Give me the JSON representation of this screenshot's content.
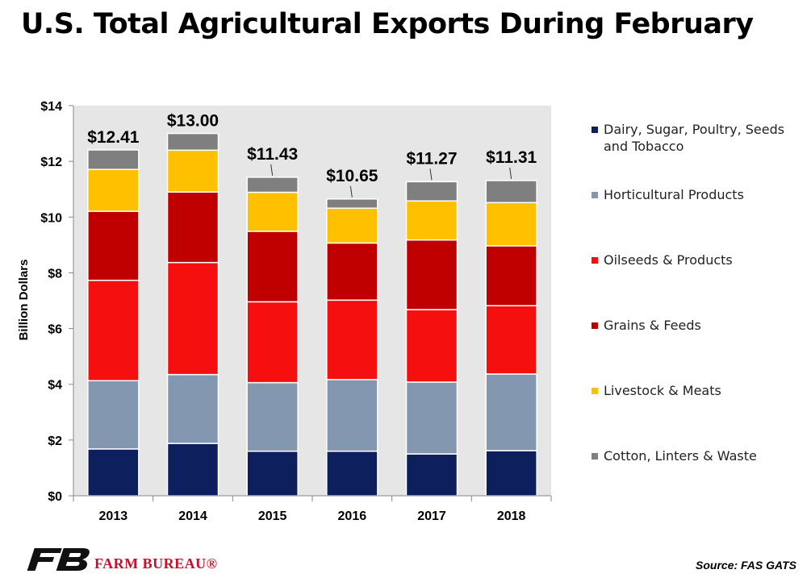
{
  "page": {
    "title": "U.S. Total Agricultural Exports During February",
    "source": "Source: FAS GATS",
    "brand": "FARM BUREAU®"
  },
  "colors": {
    "dairy": "#0d1f5c",
    "horticultural": "#8497b0",
    "oilseeds": "#f50f0f",
    "grains": "#c00000",
    "livestock": "#ffc000",
    "cotton": "#7f7f7f",
    "plot_bg": "#e6e6e6",
    "brand_red": "#c8102e"
  },
  "chart_data": {
    "type": "bar",
    "stacked": true,
    "title": "U.S. Total Agricultural Exports During February",
    "ylabel": "Billion Dollars",
    "xlabel": "",
    "ylim": [
      0,
      14
    ],
    "ytick_values": [
      0,
      2,
      4,
      6,
      8,
      10,
      12,
      14
    ],
    "ytick_labels": [
      "$0",
      "$2",
      "$4",
      "$6",
      "$8",
      "$10",
      "$12",
      "$14"
    ],
    "grid": false,
    "legend_position": "right",
    "categories": [
      "2013",
      "2014",
      "2015",
      "2016",
      "2017",
      "2018"
    ],
    "totals": [
      12.41,
      13.0,
      11.43,
      10.65,
      11.27,
      11.31
    ],
    "total_labels": [
      "$12.41",
      "$13.00",
      "$11.43",
      "$10.65",
      "$11.27",
      "$11.31"
    ],
    "series": [
      {
        "name": "Dairy, Sugar, Poultry, Seeds and Tobacco",
        "key": "dairy",
        "values": [
          1.68,
          1.88,
          1.6,
          1.6,
          1.5,
          1.62
        ]
      },
      {
        "name": "Horticultural Products",
        "key": "horticultural",
        "values": [
          2.45,
          2.47,
          2.46,
          2.57,
          2.58,
          2.75
        ]
      },
      {
        "name": "Oilseeds & Products",
        "key": "oilseeds",
        "values": [
          3.6,
          4.02,
          2.9,
          2.85,
          2.6,
          2.45
        ]
      },
      {
        "name": "Grains & Feeds",
        "key": "grains",
        "values": [
          2.48,
          2.53,
          2.53,
          2.05,
          2.5,
          2.15
        ]
      },
      {
        "name": "Livestock & Meats",
        "key": "livestock",
        "values": [
          1.5,
          1.5,
          1.4,
          1.25,
          1.4,
          1.55
        ]
      },
      {
        "name": "Cotton, Linters & Waste",
        "key": "cotton",
        "values": [
          0.7,
          0.6,
          0.54,
          0.33,
          0.69,
          0.79
        ]
      }
    ]
  }
}
